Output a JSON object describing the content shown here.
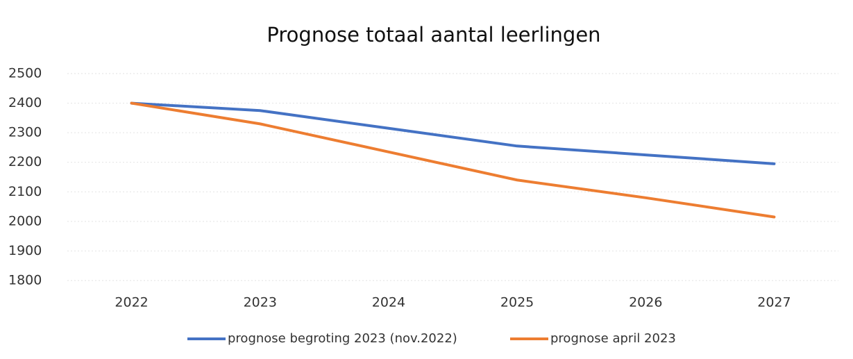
{
  "chart_data": {
    "type": "line",
    "title": "Prognose totaal aantal leerlingen",
    "categories": [
      "2022",
      "2023",
      "2024",
      "2025",
      "2026",
      "2027"
    ],
    "series": [
      {
        "name": "prognose begroting 2023 (nov.2022)",
        "color": "#4472c4",
        "values": [
          2400,
          2375,
          2315,
          2255,
          2225,
          2195
        ]
      },
      {
        "name": "prognose april 2023",
        "color": "#ed7d31",
        "values": [
          2400,
          2330,
          2235,
          2140,
          2080,
          2015
        ]
      }
    ],
    "ylim": [
      1800,
      2500
    ],
    "yticks": [
      1800,
      1900,
      2000,
      2100,
      2200,
      2300,
      2400,
      2500
    ],
    "grid": true,
    "legend": "bottom"
  }
}
